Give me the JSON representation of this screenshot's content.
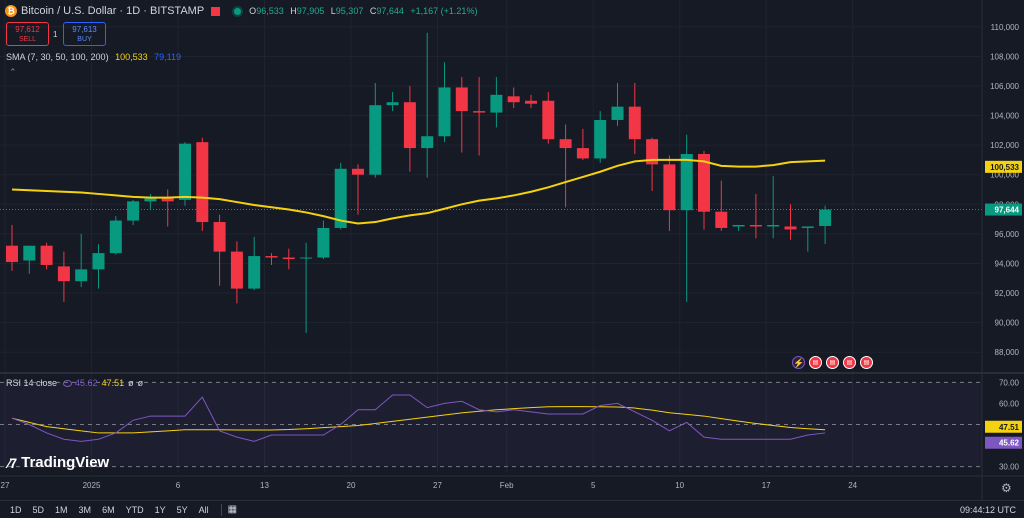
{
  "header": {
    "symbol_title": "Bitcoin / U.S. Dollar · 1D · BITSTAMP",
    "open_label": "O",
    "open_value": "96,533",
    "high_label": "H",
    "high_value": "97,905",
    "low_label": "L",
    "low_value": "95,307",
    "close_label": "C",
    "close_value": "97,644",
    "change": "+1,167 (+1.21%)",
    "coin_icon": "bitcoin-icon"
  },
  "trade": {
    "sell_price": "97,612",
    "sell_label": "SELL",
    "buy_price": "97,613",
    "buy_label": "BUY",
    "spread": "1"
  },
  "sma_legend": {
    "label": "SMA (7, 30, 50, 100, 200)",
    "value1": "100,533",
    "value2": "79,119"
  },
  "rsi_legend": {
    "label": "RSI 14 close",
    "rsi": "45.62",
    "ma": "47.51",
    "extra1": "ø",
    "extra2": "ø"
  },
  "brand": "TradingView",
  "bottom": {
    "ranges": [
      "1D",
      "5D",
      "1M",
      "3M",
      "6M",
      "YTD",
      "1Y",
      "5Y",
      "All"
    ],
    "clock": "09:44:12 UTC"
  },
  "colors": {
    "up": "#089981",
    "down": "#f23645",
    "sma": "#f5d20f",
    "rsi": "#7e57c2",
    "background": "#161a25"
  },
  "chart_data": [
    {
      "type": "candlestick",
      "title": "Bitcoin / U.S. Dollar · 1D · BITSTAMP",
      "x_tick_labels": [
        "27",
        "2025",
        "6",
        "13",
        "20",
        "27",
        "Feb",
        "5",
        "10",
        "17",
        "24"
      ],
      "y_tick_labels": [
        "88,000",
        "90,000",
        "92,000",
        "94,000",
        "96,000",
        "98,000",
        "100,000",
        "102,000",
        "104,000",
        "106,000",
        "108,000",
        "110,000"
      ],
      "ylim": [
        87000,
        111000
      ],
      "candles": [
        {
          "o": 95200,
          "h": 96600,
          "l": 93500,
          "c": 94100
        },
        {
          "o": 94200,
          "h": 95000,
          "l": 93300,
          "c": 95200
        },
        {
          "o": 95200,
          "h": 95400,
          "l": 93600,
          "c": 93900
        },
        {
          "o": 93800,
          "h": 94800,
          "l": 91400,
          "c": 92800
        },
        {
          "o": 92800,
          "h": 96000,
          "l": 92400,
          "c": 93600
        },
        {
          "o": 93600,
          "h": 95300,
          "l": 92300,
          "c": 94700
        },
        {
          "o": 94700,
          "h": 97200,
          "l": 94600,
          "c": 96900
        },
        {
          "o": 96900,
          "h": 98300,
          "l": 96600,
          "c": 98200
        },
        {
          "o": 98200,
          "h": 98700,
          "l": 97600,
          "c": 98400
        },
        {
          "o": 98400,
          "h": 99000,
          "l": 96500,
          "c": 98200
        },
        {
          "o": 98300,
          "h": 102200,
          "l": 97900,
          "c": 102100
        },
        {
          "o": 102200,
          "h": 102500,
          "l": 96200,
          "c": 96800
        },
        {
          "o": 96800,
          "h": 97300,
          "l": 92500,
          "c": 94800
        },
        {
          "o": 94800,
          "h": 95500,
          "l": 91300,
          "c": 92300
        },
        {
          "o": 92300,
          "h": 95800,
          "l": 92200,
          "c": 94500
        },
        {
          "o": 94500,
          "h": 94700,
          "l": 93900,
          "c": 94400
        },
        {
          "o": 94400,
          "h": 95000,
          "l": 93600,
          "c": 94300
        },
        {
          "o": 94400,
          "h": 95400,
          "l": 89300,
          "c": 94400
        },
        {
          "o": 94400,
          "h": 96900,
          "l": 94300,
          "c": 96400
        },
        {
          "o": 96400,
          "h": 100800,
          "l": 96300,
          "c": 100400
        },
        {
          "o": 100400,
          "h": 100700,
          "l": 97300,
          "c": 100000
        },
        {
          "o": 100000,
          "h": 106200,
          "l": 99800,
          "c": 104700
        },
        {
          "o": 104700,
          "h": 105600,
          "l": 104300,
          "c": 104900
        },
        {
          "o": 104900,
          "h": 106000,
          "l": 100200,
          "c": 101800
        },
        {
          "o": 101800,
          "h": 109600,
          "l": 99800,
          "c": 102600
        },
        {
          "o": 102600,
          "h": 107600,
          "l": 102200,
          "c": 105900
        },
        {
          "o": 105900,
          "h": 106600,
          "l": 101500,
          "c": 104300
        },
        {
          "o": 104300,
          "h": 106600,
          "l": 101300,
          "c": 104200
        },
        {
          "o": 104200,
          "h": 106600,
          "l": 103200,
          "c": 105400
        },
        {
          "o": 105300,
          "h": 105900,
          "l": 104500,
          "c": 104900
        },
        {
          "o": 105000,
          "h": 105400,
          "l": 104500,
          "c": 104800
        },
        {
          "o": 105000,
          "h": 105600,
          "l": 102100,
          "c": 102400
        },
        {
          "o": 102400,
          "h": 103400,
          "l": 97800,
          "c": 101800
        },
        {
          "o": 101800,
          "h": 103100,
          "l": 101000,
          "c": 101100
        },
        {
          "o": 101100,
          "h": 104300,
          "l": 100800,
          "c": 103700
        },
        {
          "o": 103700,
          "h": 106200,
          "l": 103300,
          "c": 104600
        },
        {
          "o": 104600,
          "h": 106200,
          "l": 101400,
          "c": 102400
        },
        {
          "o": 102400,
          "h": 102500,
          "l": 98900,
          "c": 100700
        },
        {
          "o": 100700,
          "h": 101300,
          "l": 96200,
          "c": 97600
        },
        {
          "o": 97600,
          "h": 102700,
          "l": 91400,
          "c": 101400
        },
        {
          "o": 101400,
          "h": 101600,
          "l": 96300,
          "c": 97500
        },
        {
          "o": 97500,
          "h": 99600,
          "l": 96200,
          "c": 96400
        },
        {
          "o": 96500,
          "h": 96600,
          "l": 96200,
          "c": 96600
        },
        {
          "o": 96600,
          "h": 98700,
          "l": 95700,
          "c": 96500
        },
        {
          "o": 96500,
          "h": 99900,
          "l": 95700,
          "c": 96600
        },
        {
          "o": 96500,
          "h": 98000,
          "l": 95600,
          "c": 96300
        },
        {
          "o": 96400,
          "h": 96500,
          "l": 94800,
          "c": 96500
        },
        {
          "o": 96533,
          "h": 97905,
          "l": 95307,
          "c": 97644
        }
      ],
      "sma": [
        99000,
        98950,
        98900,
        98850,
        98800,
        98700,
        98600,
        98500,
        98450,
        98450,
        98500,
        98450,
        98350,
        98150,
        97950,
        97800,
        97650,
        97450,
        97200,
        96900,
        96700,
        96800,
        97050,
        97250,
        97400,
        97700,
        98000,
        98250,
        98400,
        98600,
        98850,
        99150,
        99500,
        99850,
        100200,
        100600,
        100900,
        101000,
        101000,
        101000,
        100900,
        100600,
        100550,
        100550,
        100650,
        100850,
        100900,
        100950
      ],
      "sma_value_label": "100,533",
      "last_price_label": "97,644",
      "last_price": 97644
    },
    {
      "type": "line",
      "title": "RSI 14 close",
      "ylim": [
        27,
        73
      ],
      "y_tick_labels": [
        "30.00",
        "40.00",
        "50.00",
        "60.00",
        "70.00"
      ],
      "rsi": [
        53,
        50,
        46,
        43,
        42,
        43,
        46,
        52,
        54,
        54,
        54,
        63,
        47,
        44,
        42,
        45,
        45,
        45,
        45,
        50,
        57,
        57,
        64,
        64,
        58,
        60,
        61,
        57,
        56,
        57,
        56,
        55,
        55,
        55,
        59,
        60,
        56,
        52,
        47,
        51,
        44,
        43,
        43,
        43,
        43,
        43,
        45,
        46
      ],
      "rsi_ma": [
        53,
        51,
        49,
        48,
        47,
        46,
        46,
        46,
        46.5,
        47,
        47.5,
        47.5,
        47.5,
        47.4,
        47.4,
        47.4,
        47.6,
        48,
        48.5,
        49,
        49.5,
        50.5,
        51.5,
        52.5,
        53.5,
        54.5,
        55.5,
        56.3,
        57,
        57.5,
        58,
        58.4,
        58.5,
        58.5,
        58.4,
        58.3,
        57.8,
        56.8,
        55.6,
        54.8,
        54,
        52.8,
        51.6,
        50.5,
        49.5,
        48.6,
        48,
        47.51
      ],
      "rsi_label": "45.62",
      "ma_label": "47.51"
    }
  ]
}
